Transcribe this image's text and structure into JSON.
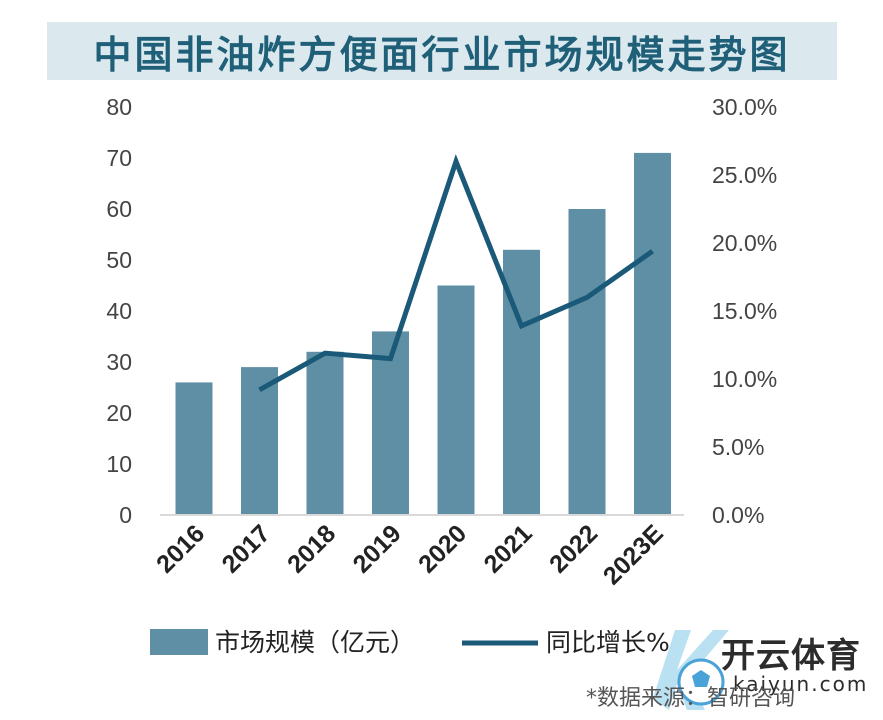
{
  "chart_data": {
    "type": "bar",
    "title": "中国非油炸方便面行业市场规模走势图",
    "categories": [
      "2016",
      "2017",
      "2018",
      "2019",
      "2020",
      "2021",
      "2022",
      "2023E"
    ],
    "series": [
      {
        "name": "市场规模（亿元）",
        "type": "bar",
        "axis": "left",
        "color": "#5e8fa5",
        "values": [
          26,
          29,
          32,
          36,
          45,
          52,
          60,
          71
        ]
      },
      {
        "name": "同比增长%",
        "type": "line",
        "axis": "right",
        "color": "#1a5a78",
        "values": [
          null,
          9.2,
          11.9,
          11.5,
          26.0,
          13.9,
          16.0,
          19.4
        ]
      }
    ],
    "ylim_left": [
      0,
      80
    ],
    "yticks_left": [
      "0",
      "10",
      "20",
      "30",
      "40",
      "50",
      "60",
      "70",
      "80"
    ],
    "ylim_right": [
      0,
      30
    ],
    "yticks_right": [
      "0.0%",
      "5.0%",
      "10.0%",
      "15.0%",
      "20.0%",
      "25.0%",
      "30.0%"
    ],
    "grid": false,
    "legend_position": "bottom"
  },
  "legend": {
    "bar_label": "市场规模（亿元）",
    "line_label": "同比增长%"
  },
  "watermark": {
    "brand": "开云体育",
    "url": "kaiyun.com"
  },
  "source": "*数据来源：智研咨询"
}
